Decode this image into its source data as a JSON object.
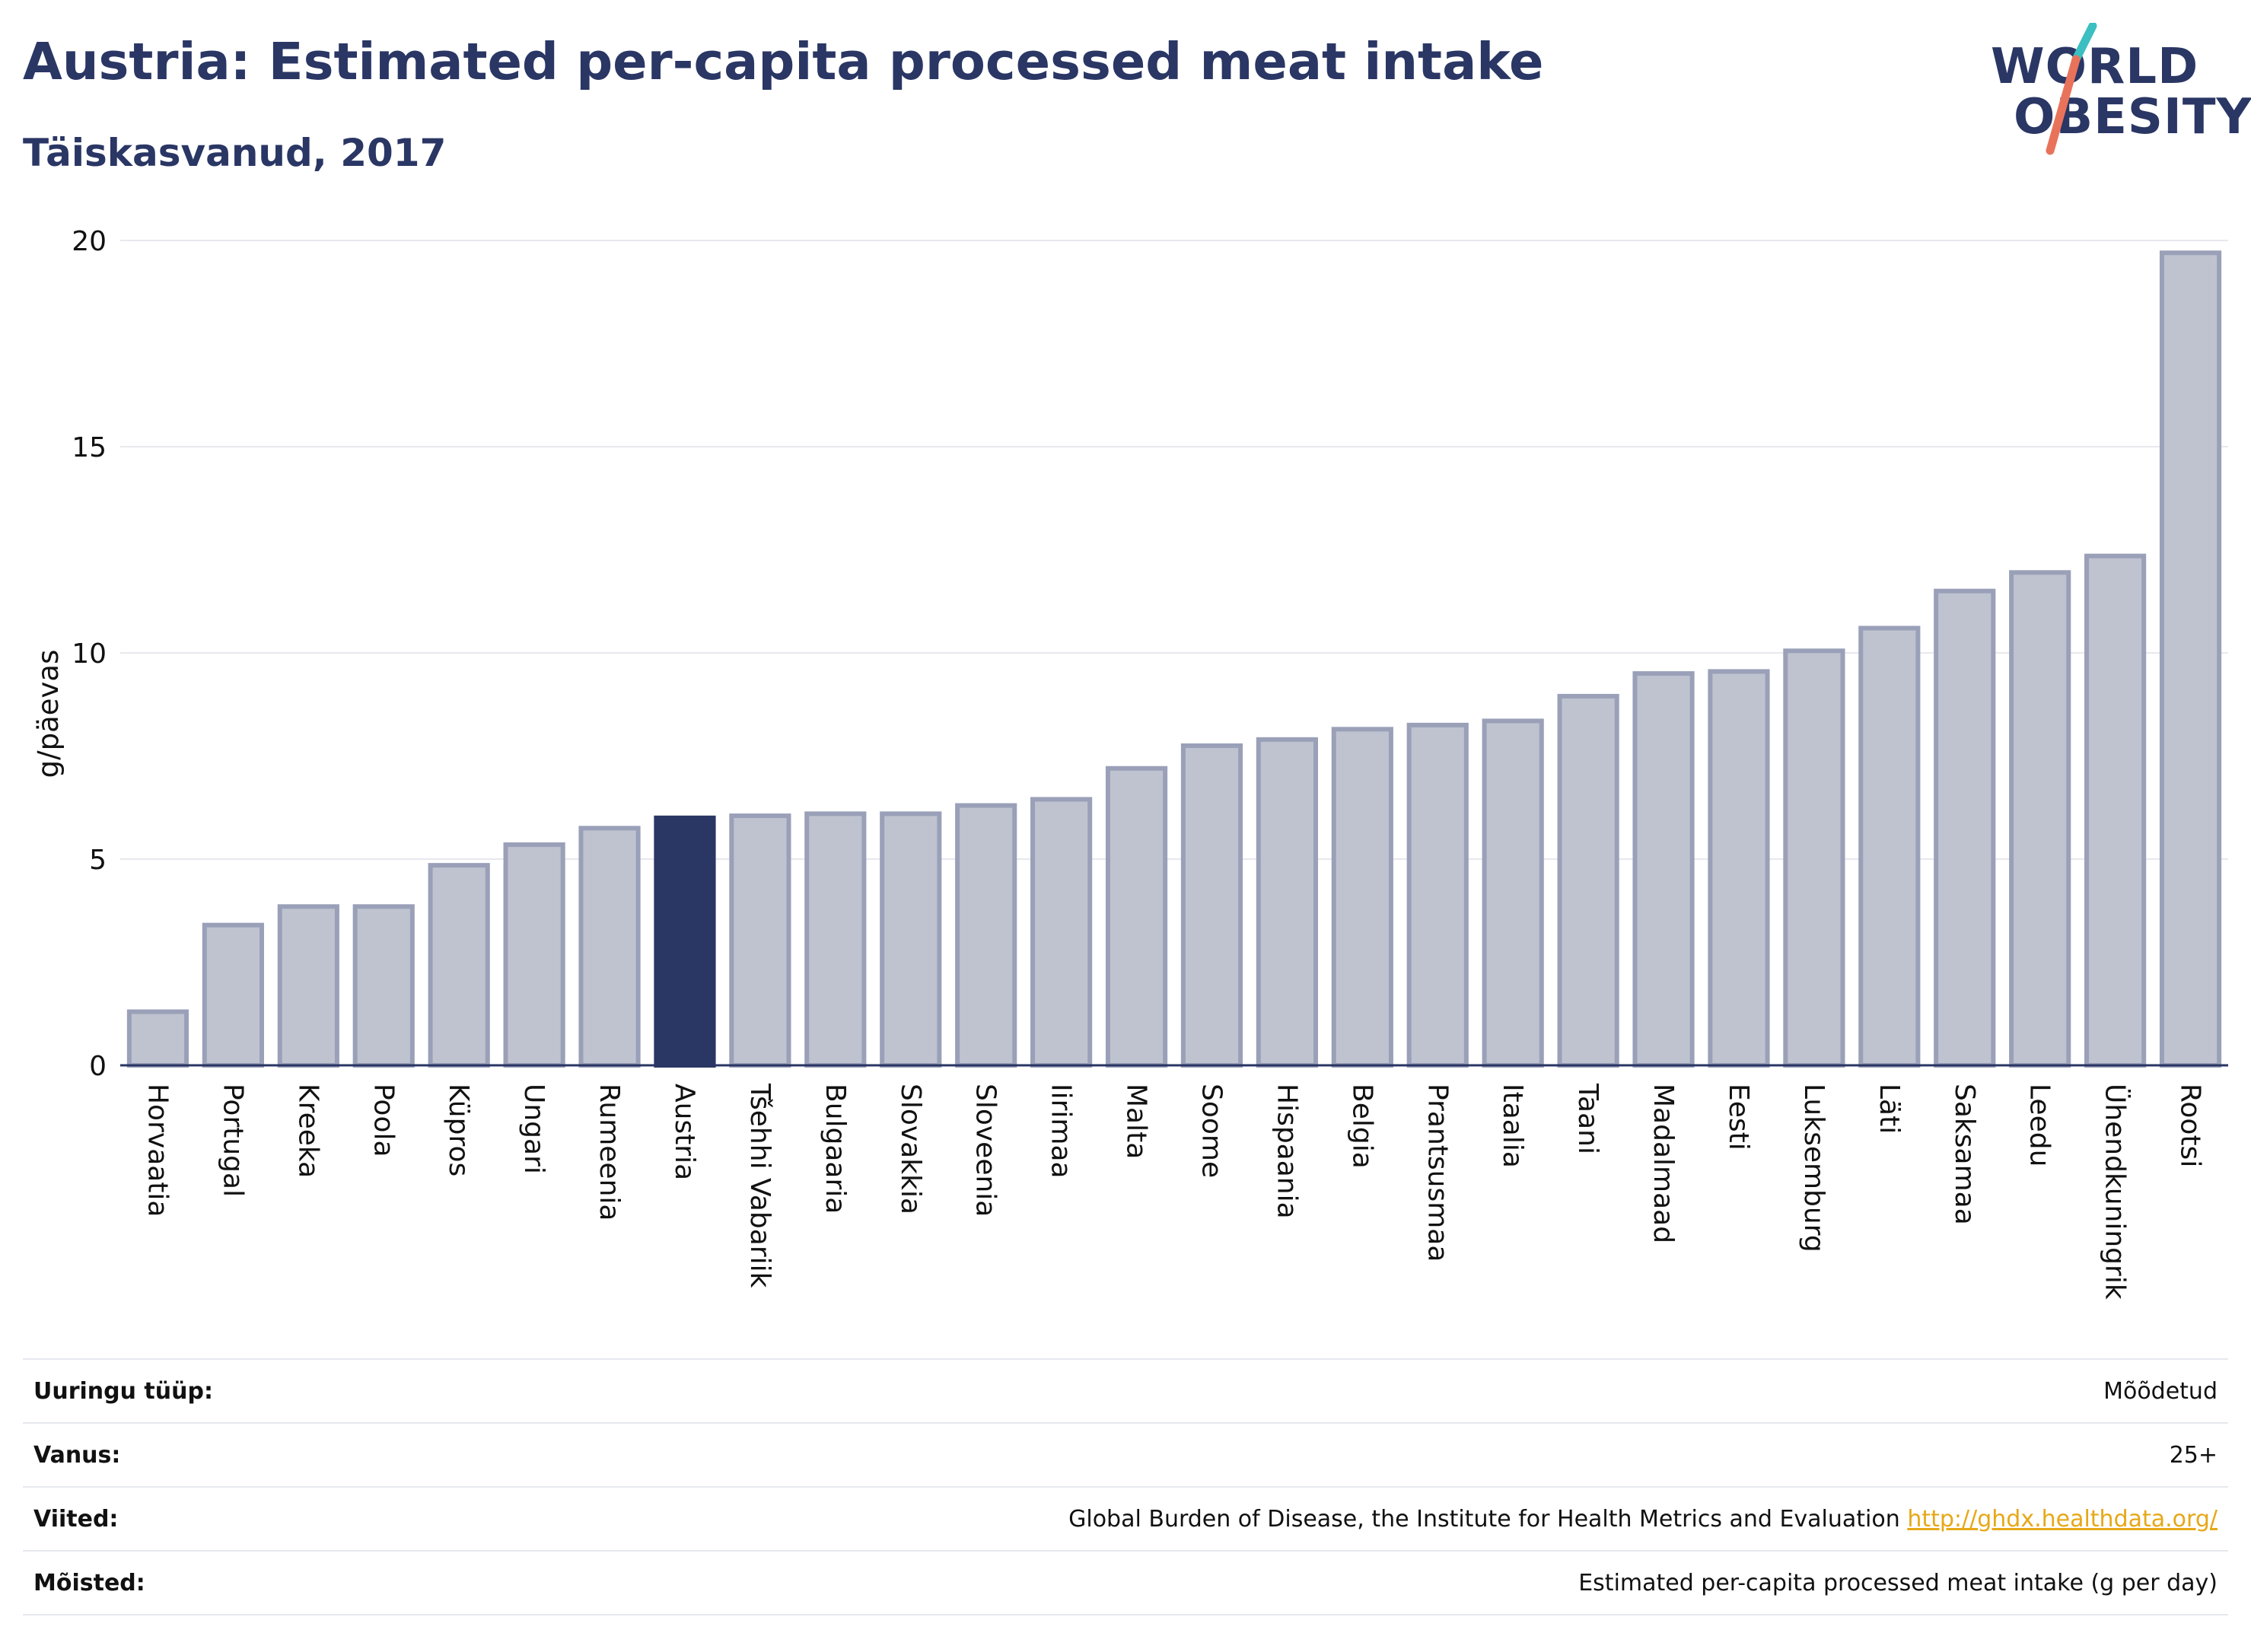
{
  "header": {
    "title": "Austria: Estimated per-capita processed meat intake",
    "subtitle": "Täiskasvanud, 2017"
  },
  "logo": {
    "line1": "WORLD",
    "line2": "OBESITY"
  },
  "colors": {
    "bar": "#bfc3d0",
    "bar_stroke": "#9aa0b8",
    "highlight": "#2a3664",
    "grid": "#e8e8ee",
    "axis": "#2a3664",
    "logo_teal": "#3bbfc1",
    "logo_coral": "#e8735a",
    "link": "#e6a817"
  },
  "chart_data": {
    "type": "bar",
    "ylabel": "g/päevas",
    "ylim": [
      0,
      20
    ],
    "yticks": [
      0,
      5,
      10,
      15,
      20
    ],
    "grid": true,
    "highlight": "Austria",
    "categories": [
      "Horvaatia",
      "Portugal",
      "Kreeka",
      "Poola",
      "Küpros",
      "Ungari",
      "Rumeenia",
      "Austria",
      "Tšehhi Vabariik",
      "Bulgaaria",
      "Slovakkia",
      "Sloveenia",
      "Iirimaa",
      "Malta",
      "Soome",
      "Hispaania",
      "Belgia",
      "Prantsusmaa",
      "Itaalia",
      "Taani",
      "Madalmaad",
      "Eesti",
      "Luksemburg",
      "Läti",
      "Saksamaa",
      "Leedu",
      "Ühendkuningrik",
      "Rootsi"
    ],
    "values": [
      1.3,
      3.4,
      3.85,
      3.85,
      4.85,
      5.35,
      5.75,
      6.0,
      6.05,
      6.1,
      6.1,
      6.3,
      6.45,
      7.2,
      7.75,
      7.9,
      8.15,
      8.25,
      8.35,
      8.95,
      9.5,
      9.55,
      10.05,
      10.6,
      11.5,
      11.95,
      12.35,
      19.7
    ]
  },
  "meta": {
    "rows": [
      {
        "label": "Uuringu tüüp:",
        "value": "Mõõdetud"
      },
      {
        "label": "Vanus:",
        "value": "25+"
      },
      {
        "label": "Viited:",
        "value": "Global Burden of Disease, the Institute for Health Metrics and Evaluation",
        "link": "http://ghdx.healthdata.org/"
      },
      {
        "label": "Mõisted:",
        "value": "Estimated per-capita processed meat intake (g per day)"
      }
    ]
  }
}
